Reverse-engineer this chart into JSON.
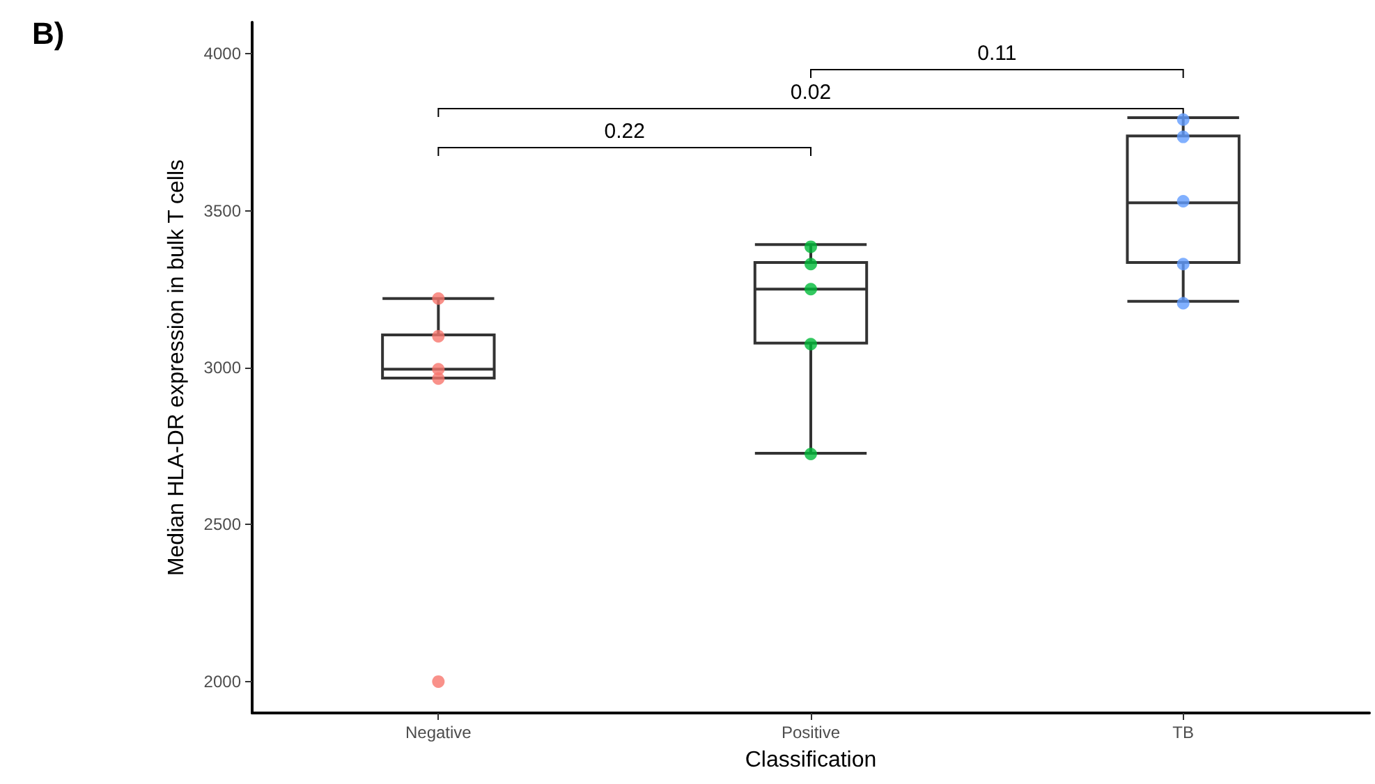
{
  "chart_data": {
    "type": "box",
    "title": "B)",
    "xlabel": "Classification",
    "ylabel": "Median HLA-DR expression in bulk T cells",
    "categories": [
      "Negative",
      "Positive",
      "TB"
    ],
    "ylim": [
      1900,
      4100
    ],
    "yticks": [
      2000,
      2500,
      3000,
      3500,
      4000
    ],
    "grid": false,
    "boxes": [
      {
        "low": 2967,
        "q1": 2967,
        "median": 2995,
        "q3": 3104,
        "high": 3220
      },
      {
        "low": 2727,
        "q1": 3078,
        "median": 3250,
        "q3": 3335,
        "high": 3392
      },
      {
        "low": 3211,
        "q1": 3335,
        "median": 3525,
        "q3": 3738,
        "high": 3796
      }
    ],
    "series": [
      {
        "type": "scatter",
        "color": "#f8766d",
        "x": [
          "Negative",
          "Negative",
          "Negative",
          "Negative",
          "Negative"
        ],
        "values": [
          3220,
          3100,
          2995,
          2965,
          2000
        ]
      },
      {
        "type": "scatter",
        "color": "#00ba38",
        "x": [
          "Positive",
          "Positive",
          "Positive",
          "Positive",
          "Positive"
        ],
        "values": [
          3385,
          3330,
          3250,
          3075,
          2725
        ]
      },
      {
        "type": "scatter",
        "color": "#619cff",
        "x": [
          "TB",
          "TB",
          "TB",
          "TB",
          "TB"
        ],
        "values": [
          3790,
          3735,
          3530,
          3330,
          3205
        ]
      }
    ],
    "annotations": [
      "0.22",
      "0.02",
      "0.11"
    ]
  }
}
